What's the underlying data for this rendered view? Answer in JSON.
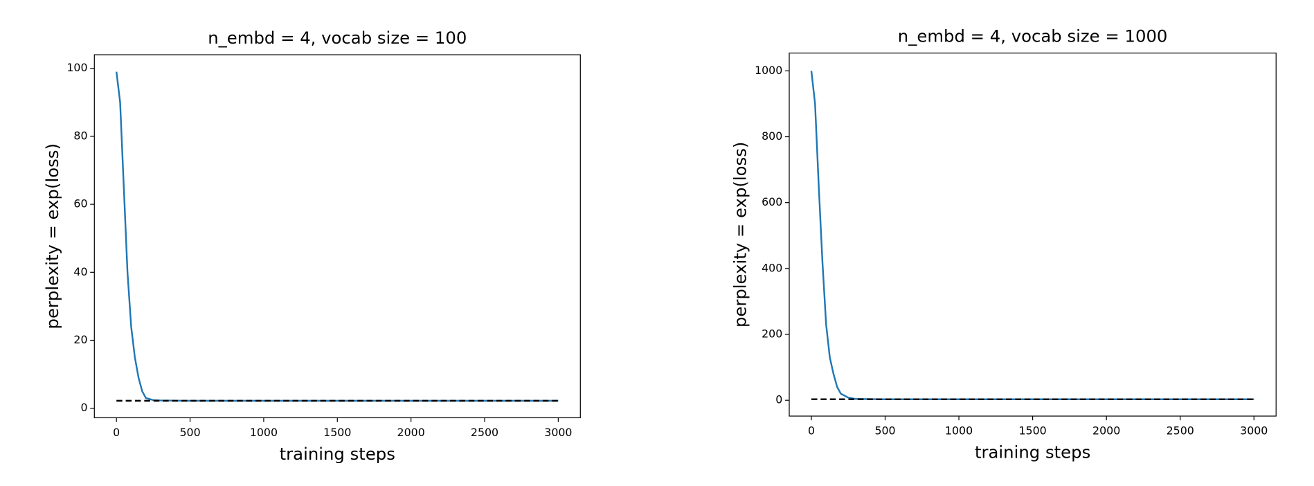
{
  "chart_data": [
    {
      "type": "line",
      "title": "n_embd = 4, vocab size = 100",
      "xlabel": "training steps",
      "ylabel": "perplexity = exp(loss)",
      "x": [
        0,
        25,
        50,
        75,
        100,
        125,
        150,
        175,
        200,
        250,
        300,
        500,
        1000,
        1500,
        2000,
        2500,
        3000
      ],
      "series": [
        {
          "color": "#1f77b4",
          "values": [
            99,
            90,
            65,
            40,
            24,
            15,
            9,
            5,
            3,
            2.4,
            2.3,
            2.2,
            2.2,
            2.2,
            2.2,
            2.2,
            2.2
          ]
        },
        {
          "color": "#000000",
          "dashed": true,
          "x": [
            0,
            3000
          ],
          "values": [
            2.2,
            2.2
          ]
        }
      ],
      "xlim": [
        -150,
        3150
      ],
      "ylim": [
        -2.8,
        104
      ],
      "xticks": [
        0,
        500,
        1000,
        1500,
        2000,
        2500,
        3000
      ],
      "yticks": [
        0,
        20,
        40,
        60,
        80,
        100
      ]
    },
    {
      "type": "line",
      "title": "n_embd = 4, vocab size = 1000",
      "xlabel": "training steps",
      "ylabel": "perplexity = exp(loss)",
      "x": [
        0,
        25,
        50,
        75,
        100,
        125,
        150,
        175,
        200,
        250,
        300,
        500,
        1000,
        1500,
        2000,
        2500,
        3000
      ],
      "series": [
        {
          "color": "#1f77b4",
          "values": [
            1000,
            900,
            650,
            420,
            230,
            130,
            80,
            40,
            20,
            8,
            4,
            3,
            3,
            3,
            3,
            3,
            3
          ]
        },
        {
          "color": "#000000",
          "dashed": true,
          "x": [
            0,
            3000
          ],
          "values": [
            3,
            3
          ]
        }
      ],
      "xlim": [
        -150,
        3150
      ],
      "ylim": [
        -48,
        1054
      ],
      "xticks": [
        0,
        500,
        1000,
        1500,
        2000,
        2500,
        3000
      ],
      "yticks": [
        0,
        200,
        400,
        600,
        800,
        1000
      ]
    }
  ]
}
